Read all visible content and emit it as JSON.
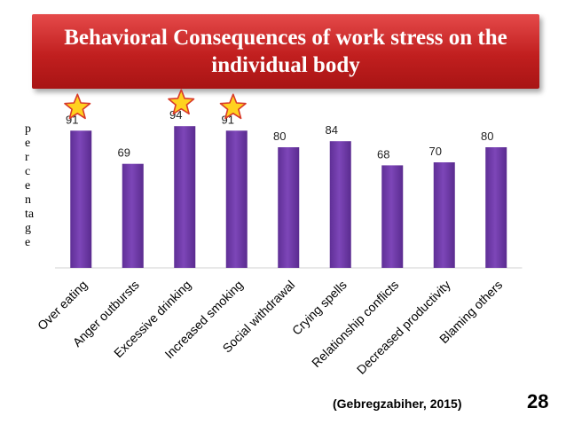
{
  "title": "Behavioral Consequences of work stress on the individual body",
  "ylabel": "percentage",
  "ylabel_lines": [
    "p",
    "e",
    "r",
    "c",
    "e",
    "n",
    "ta",
    "g",
    "e"
  ],
  "source": "(Gebregzabiher, 2015)",
  "page_number": "28",
  "colors": {
    "title_bg": "#c11f1f",
    "bar": "#7d46b8",
    "star_fill": "#ffd21f",
    "star_stroke": "#d83a2a"
  },
  "chart_data": {
    "type": "bar",
    "title": "Behavioral Consequences of work stress on the individual body",
    "xlabel": "",
    "ylabel": "percentage",
    "categories": [
      "Over eating",
      "Anger outbursts",
      "Excessive drinking",
      "Increased smoking",
      "Social withdrawal",
      "Crying spells",
      "Relationship conflicts",
      "Decreased productivity",
      "Blaming others"
    ],
    "values": [
      91,
      69,
      94,
      91,
      80,
      84,
      68,
      70,
      80
    ],
    "highlighted": [
      "Over eating",
      "Excessive drinking",
      "Increased smoking"
    ],
    "highlight_marker": "star-icon",
    "data_labels": true,
    "grid": false,
    "legend": "none"
  }
}
